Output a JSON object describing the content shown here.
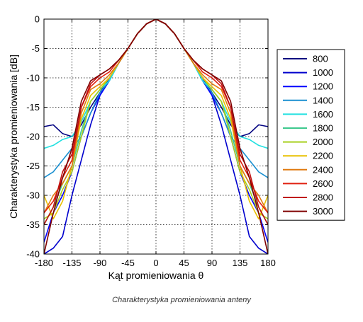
{
  "chart_data": {
    "type": "line",
    "xlabel": "Kąt promieniowania θ",
    "ylabel": "Charakterystyka promieniowania [dB]",
    "xlim": [
      -180,
      180
    ],
    "ylim": [
      -40,
      0
    ],
    "xticks": [
      -180,
      -135,
      -90,
      -45,
      0,
      45,
      90,
      135,
      180
    ],
    "yticks": [
      0,
      -5,
      -10,
      -15,
      -20,
      -25,
      -30,
      -35,
      -40
    ],
    "xtick_labels": [
      "-180",
      "-135",
      "-90",
      "-45",
      "0",
      "45",
      "90",
      "135",
      "180"
    ],
    "ytick_labels": [
      "0",
      "-5",
      "-10",
      "-15",
      "-20",
      "-25",
      "-30",
      "-35",
      "-40"
    ],
    "grid": true,
    "legend_position": "right",
    "x": [
      0,
      15,
      30,
      45,
      60,
      75,
      90,
      105,
      120,
      135,
      150,
      165,
      180
    ],
    "series": [
      {
        "name": "800",
        "color": "#000080",
        "values": [
          0,
          -0.8,
          -2.5,
          -5,
          -7.5,
          -10,
          -12.5,
          -15,
          -18,
          -20,
          -19.5,
          -18,
          -18.3
        ]
      },
      {
        "name": "1000",
        "color": "#0000cd",
        "values": [
          0,
          -0.8,
          -2.5,
          -5,
          -7.5,
          -10,
          -13,
          -18,
          -24,
          -30,
          -37,
          -39,
          -40
        ]
      },
      {
        "name": "1200",
        "color": "#0000ff",
        "values": [
          0,
          -0.8,
          -2.5,
          -5,
          -7.5,
          -10.5,
          -13,
          -16,
          -20,
          -26,
          -30,
          -33,
          -38
        ]
      },
      {
        "name": "1400",
        "color": "#1a8fd0",
        "values": [
          0,
          -0.8,
          -2.5,
          -5,
          -7.5,
          -10.5,
          -12.5,
          -16,
          -20,
          -22,
          -24,
          -26,
          -27
        ]
      },
      {
        "name": "1600",
        "color": "#22e0e0",
        "values": [
          0,
          -0.8,
          -2.5,
          -5,
          -7.5,
          -10.5,
          -12,
          -14,
          -17.5,
          -20,
          -20.5,
          -21.5,
          -22
        ]
      },
      {
        "name": "1800",
        "color": "#3ec98e",
        "values": [
          0,
          -0.8,
          -2.5,
          -5,
          -7.5,
          -10,
          -12,
          -14,
          -19,
          -25,
          -28,
          -32,
          -35
        ]
      },
      {
        "name": "2000",
        "color": "#a8d020",
        "values": [
          0,
          -0.8,
          -2.5,
          -5,
          -7.5,
          -10,
          -12,
          -14,
          -20,
          -26,
          -29,
          -33,
          -34
        ]
      },
      {
        "name": "2200",
        "color": "#e8c000",
        "values": [
          0,
          -0.8,
          -2.5,
          -5,
          -7.5,
          -10,
          -11.5,
          -13,
          -17,
          -25,
          -31,
          -34,
          -30
        ]
      },
      {
        "name": "2400",
        "color": "#e07a10",
        "values": [
          0,
          -0.8,
          -2.5,
          -5,
          -7.5,
          -9.5,
          -11,
          -12,
          -16,
          -25,
          -28,
          -30,
          -33
        ]
      },
      {
        "name": "2600",
        "color": "#e02010",
        "values": [
          0,
          -0.8,
          -2.5,
          -5,
          -7,
          -9,
          -10,
          -11.5,
          -15,
          -24,
          -27,
          -31,
          -33
        ]
      },
      {
        "name": "2800",
        "color": "#c01010",
        "values": [
          0,
          -0.8,
          -2.5,
          -5,
          -7,
          -8.5,
          -9.5,
          -11,
          -15,
          -23,
          -26,
          -32,
          -35
        ]
      },
      {
        "name": "3000",
        "color": "#800000",
        "values": [
          0,
          -0.8,
          -2.5,
          -5,
          -7,
          -8.5,
          -9.5,
          -10.5,
          -14,
          -22,
          -27,
          -33,
          -40
        ]
      }
    ]
  },
  "caption": "Charakterystyka promieniowania anteny"
}
